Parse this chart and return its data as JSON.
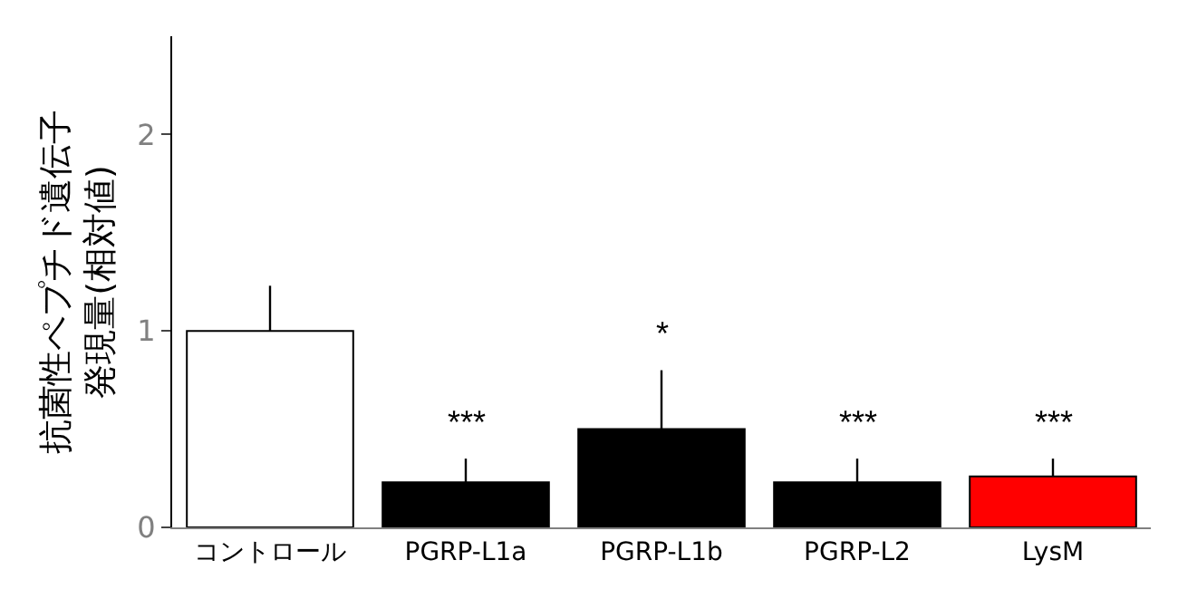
{
  "chart_data": {
    "type": "bar",
    "ylabel": "抗菌性ペプチド遺伝子発現量(相対値)",
    "categories": [
      "コントロール",
      "PGRP-L1a",
      "PGRP-L1b",
      "PGRP-L2",
      "LysM"
    ],
    "values": [
      1.0,
      0.23,
      0.5,
      0.23,
      0.26
    ],
    "colors": [
      "#ffffff",
      "#000000",
      "#000000",
      "#000000",
      "#ff0000"
    ],
    "errors": [
      [
        1.0,
        1.23
      ],
      [
        0.23,
        0.35
      ],
      [
        0.5,
        0.8
      ],
      [
        0.23,
        0.35
      ],
      [
        0.26,
        0.35
      ]
    ],
    "value_labels": [
      null,
      "***",
      "*",
      "***",
      "***"
    ],
    "ylim": [
      0,
      2.5
    ],
    "yticks": [
      0,
      1,
      2
    ]
  }
}
